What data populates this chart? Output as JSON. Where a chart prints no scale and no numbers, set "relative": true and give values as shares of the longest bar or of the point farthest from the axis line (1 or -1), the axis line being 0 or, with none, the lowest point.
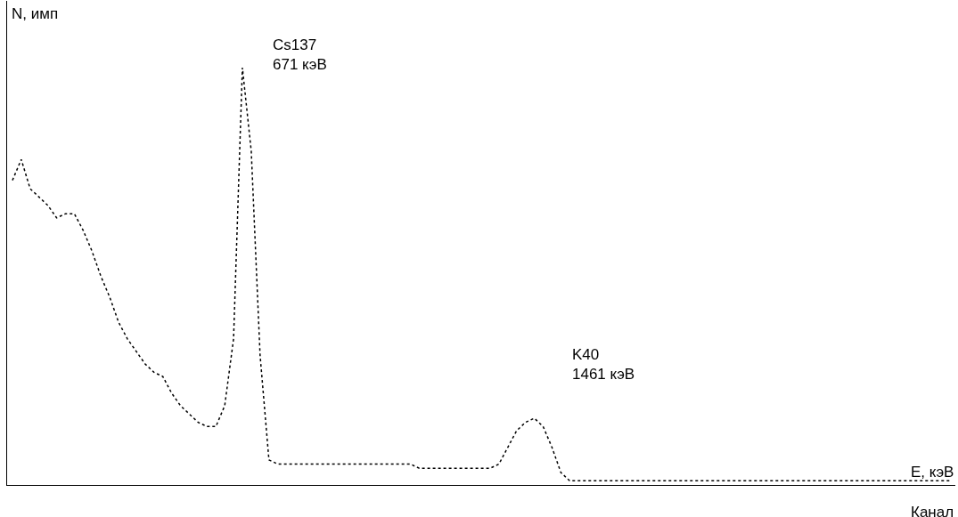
{
  "chart_data": {
    "type": "line",
    "relative": true,
    "ylabel": "N, имп",
    "xlabel": "Канал",
    "annotations": [
      "Cs137\n671 кэВ",
      "K40\n1461 кэВ",
      "E, кэВ"
    ],
    "categories": [
      null,
      null,
      null,
      null,
      null,
      null,
      null,
      null,
      null,
      null,
      null,
      null,
      null,
      null,
      null,
      null,
      null,
      null,
      null,
      null,
      null,
      null,
      null,
      null,
      null,
      null,
      null,
      null,
      null,
      null,
      null,
      null,
      null,
      null,
      null,
      null,
      null,
      null,
      null,
      null,
      null,
      null,
      null,
      null,
      null,
      null,
      null,
      null,
      null,
      null,
      null,
      null,
      null,
      null,
      null,
      null,
      null,
      null,
      null,
      null,
      null,
      null,
      null,
      null,
      null,
      null,
      null,
      null,
      null,
      null,
      null,
      null,
      null,
      null,
      null,
      null,
      null,
      null,
      null,
      null,
      null,
      null,
      null,
      null,
      null,
      null,
      null,
      null,
      null,
      null,
      null,
      null,
      null,
      null,
      null,
      null,
      null,
      null,
      null,
      null,
      null,
      null,
      null,
      null,
      null,
      null,
      null
    ],
    "series": [
      {
        "color": "#000000",
        "values": [
          0.73,
          0.78,
          0.71,
          0.69,
          0.67,
          0.64,
          0.65,
          0.65,
          0.61,
          0.56,
          0.5,
          0.45,
          0.39,
          0.35,
          0.32,
          0.29,
          0.27,
          0.26,
          0.22,
          0.19,
          0.17,
          0.15,
          0.14,
          0.14,
          0.19,
          0.35,
          1.0,
          0.8,
          0.31,
          0.06,
          0.05,
          0.05,
          0.05,
          0.05,
          0.05,
          0.05,
          0.05,
          0.05,
          0.05,
          0.05,
          0.05,
          0.05,
          0.05,
          0.05,
          0.05,
          0.05,
          0.04,
          0.04,
          0.04,
          0.04,
          0.04,
          0.04,
          0.04,
          0.04,
          0.04,
          0.05,
          0.09,
          0.13,
          0.15,
          0.16,
          0.14,
          0.09,
          0.03,
          0.01,
          0.01,
          0.01,
          0.01,
          0.01,
          0.01,
          0.01,
          0.01,
          0.01,
          0.01,
          0.01,
          0.01,
          0.01,
          0.01,
          0.01,
          0.01,
          0.01,
          0.01,
          0.01,
          0.01,
          0.01,
          0.01,
          0.01,
          0.01,
          0.01,
          0.01,
          0.01,
          0.01,
          0.01,
          0.01,
          0.01,
          0.01,
          0.01,
          0.01,
          0.01,
          0.01,
          0.01,
          0.01,
          0.01,
          0.01,
          0.01,
          0.01,
          0.01,
          0.01
        ]
      }
    ],
    "line_style": "dotted"
  }
}
